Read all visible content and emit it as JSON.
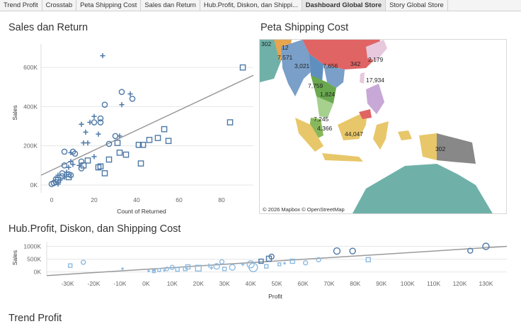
{
  "tabs": [
    {
      "label": "Trend Profit",
      "active": false
    },
    {
      "label": "Crosstab",
      "active": false
    },
    {
      "label": "Peta Shipping Cost",
      "active": false
    },
    {
      "label": "Sales dan Return",
      "active": false
    },
    {
      "label": "Hub.Profit, Diskon, dan Shippi...",
      "active": false
    },
    {
      "label": "Dashboard Global Store",
      "active": true
    },
    {
      "label": "Story Global Store",
      "active": false
    }
  ],
  "sections": {
    "sales_return_title": "Sales dan Return",
    "map_title": "Peta Shipping Cost",
    "hub_title": "Hub.Profit, Diskon, dan Shipping Cost",
    "trend_title": "Trend Profit"
  },
  "map": {
    "attribution": "© 2026 Mapbox  © OpenStreetMap",
    "labels": [
      "302",
      "12",
      "7,571",
      "3,021",
      "7,656",
      "342",
      "2,179",
      "17,934",
      "7,759",
      "1,824",
      "7,245",
      "4,366",
      "44,047",
      "302"
    ]
  },
  "colors": {
    "mark": "#4e79a7",
    "light_mark": "#8fbbe0",
    "trend": "#9a9a9a",
    "grid": "#e6e6e6"
  },
  "chart_data": [
    {
      "type": "scatter",
      "title": "Sales dan Return",
      "xlabel": "Count of Returned",
      "ylabel": "Sales",
      "xlim": [
        -5,
        95
      ],
      "ylim": [
        -40000,
        720000
      ],
      "x_ticks": [
        "0",
        "20",
        "40",
        "60",
        "80"
      ],
      "y_ticks": [
        "0K",
        "200K",
        "400K",
        "600K"
      ],
      "trend_line": [
        [
          -5,
          50000
        ],
        [
          95,
          560000
        ]
      ],
      "points": [
        {
          "x": 24,
          "y": 660000,
          "shape": "plus"
        },
        {
          "x": 90,
          "y": 600000,
          "shape": "square"
        },
        {
          "x": 33,
          "y": 475000,
          "shape": "circle"
        },
        {
          "x": 37,
          "y": 465000,
          "shape": "plus"
        },
        {
          "x": 38,
          "y": 440000,
          "shape": "circle"
        },
        {
          "x": 25,
          "y": 410000,
          "shape": "circle"
        },
        {
          "x": 33,
          "y": 410000,
          "shape": "plus"
        },
        {
          "x": 20,
          "y": 350000,
          "shape": "plus"
        },
        {
          "x": 23,
          "y": 340000,
          "shape": "circle"
        },
        {
          "x": 20,
          "y": 320000,
          "shape": "circle"
        },
        {
          "x": 23,
          "y": 320000,
          "shape": "circle"
        },
        {
          "x": 14,
          "y": 310000,
          "shape": "plus"
        },
        {
          "x": 18,
          "y": 320000,
          "shape": "plus"
        },
        {
          "x": 84,
          "y": 320000,
          "shape": "square"
        },
        {
          "x": 53,
          "y": 285000,
          "shape": "square"
        },
        {
          "x": 16,
          "y": 270000,
          "shape": "plus"
        },
        {
          "x": 22,
          "y": 260000,
          "shape": "plus"
        },
        {
          "x": 30,
          "y": 250000,
          "shape": "circle"
        },
        {
          "x": 32,
          "y": 250000,
          "shape": "plus"
        },
        {
          "x": 50,
          "y": 240000,
          "shape": "square"
        },
        {
          "x": 46,
          "y": 230000,
          "shape": "square"
        },
        {
          "x": 55,
          "y": 225000,
          "shape": "square"
        },
        {
          "x": 15,
          "y": 215000,
          "shape": "plus"
        },
        {
          "x": 17,
          "y": 215000,
          "shape": "plus"
        },
        {
          "x": 27,
          "y": 210000,
          "shape": "circle"
        },
        {
          "x": 31,
          "y": 215000,
          "shape": "square"
        },
        {
          "x": 41,
          "y": 205000,
          "shape": "square"
        },
        {
          "x": 43,
          "y": 205000,
          "shape": "square"
        },
        {
          "x": 6,
          "y": 170000,
          "shape": "circle"
        },
        {
          "x": 10,
          "y": 170000,
          "shape": "circle"
        },
        {
          "x": 11,
          "y": 160000,
          "shape": "circle"
        },
        {
          "x": 9,
          "y": 165000,
          "shape": "plus"
        },
        {
          "x": 32,
          "y": 165000,
          "shape": "square"
        },
        {
          "x": 35,
          "y": 155000,
          "shape": "square"
        },
        {
          "x": 20,
          "y": 145000,
          "shape": "plus"
        },
        {
          "x": 27,
          "y": 130000,
          "shape": "square"
        },
        {
          "x": 9,
          "y": 120000,
          "shape": "plus"
        },
        {
          "x": 14,
          "y": 120000,
          "shape": "circle"
        },
        {
          "x": 17,
          "y": 125000,
          "shape": "square"
        },
        {
          "x": 42,
          "y": 110000,
          "shape": "square"
        },
        {
          "x": 6,
          "y": 100000,
          "shape": "circle"
        },
        {
          "x": 10,
          "y": 105000,
          "shape": "plus"
        },
        {
          "x": 13,
          "y": 100000,
          "shape": "plus"
        },
        {
          "x": 15,
          "y": 100000,
          "shape": "square"
        },
        {
          "x": 8,
          "y": 90000,
          "shape": "plus"
        },
        {
          "x": 14,
          "y": 85000,
          "shape": "circle"
        },
        {
          "x": 22,
          "y": 90000,
          "shape": "square"
        },
        {
          "x": 23,
          "y": 95000,
          "shape": "square"
        },
        {
          "x": 5,
          "y": 60000,
          "shape": "circle"
        },
        {
          "x": 7,
          "y": 65000,
          "shape": "plus"
        },
        {
          "x": 8,
          "y": 55000,
          "shape": "circle"
        },
        {
          "x": 25,
          "y": 60000,
          "shape": "square"
        },
        {
          "x": 3,
          "y": 50000,
          "shape": "plus"
        },
        {
          "x": 5,
          "y": 45000,
          "shape": "circle"
        },
        {
          "x": 6,
          "y": 40000,
          "shape": "plus"
        },
        {
          "x": 8,
          "y": 40000,
          "shape": "square"
        },
        {
          "x": 9,
          "y": 50000,
          "shape": "circle"
        },
        {
          "x": 2,
          "y": 30000,
          "shape": "circle"
        },
        {
          "x": 3,
          "y": 25000,
          "shape": "square"
        },
        {
          "x": 4,
          "y": 25000,
          "shape": "plus"
        },
        {
          "x": 1,
          "y": 10000,
          "shape": "circle"
        },
        {
          "x": 2,
          "y": 15000,
          "shape": "circle"
        },
        {
          "x": 3,
          "y": 5000,
          "shape": "plus"
        },
        {
          "x": 0,
          "y": 5000,
          "shape": "circle"
        }
      ]
    },
    {
      "type": "scatter",
      "title": "Hub.Profit, Diskon, dan Shipping Cost",
      "xlabel": "Profit",
      "ylabel": "Sales",
      "xlim": [
        -38000,
        138000
      ],
      "ylim": [
        -120000,
        1180000
      ],
      "x_ticks": [
        "-30K",
        "-20K",
        "-10K",
        "0K",
        "10K",
        "20K",
        "30K",
        "40K",
        "50K",
        "60K",
        "70K",
        "80K",
        "90K",
        "100K",
        "110K",
        "120K",
        "130K"
      ],
      "y_ticks": [
        "0K",
        "500K",
        "1000K"
      ],
      "trend_line": [
        [
          -38000,
          -140000
        ],
        [
          138000,
          1000000
        ]
      ],
      "points": [
        {
          "x": 130000,
          "y": 1000000,
          "shape": "circle",
          "r": 4.5,
          "tone": "dark"
        },
        {
          "x": 73000,
          "y": 820000,
          "shape": "circle",
          "r": 4.5,
          "tone": "dark"
        },
        {
          "x": 79000,
          "y": 820000,
          "shape": "circle",
          "r": 4,
          "tone": "dark"
        },
        {
          "x": 124000,
          "y": 830000,
          "shape": "circle",
          "r": 3.5,
          "tone": "dark"
        },
        {
          "x": 47000,
          "y": 520000,
          "shape": "square",
          "r": 3.5,
          "tone": "dark"
        },
        {
          "x": 48000,
          "y": 600000,
          "shape": "circle",
          "r": 3.5,
          "tone": "dark"
        },
        {
          "x": 44000,
          "y": 420000,
          "shape": "square",
          "r": 3,
          "tone": "dark"
        },
        {
          "x": 56000,
          "y": 420000,
          "shape": "square",
          "r": 3,
          "tone": "light"
        },
        {
          "x": 66000,
          "y": 480000,
          "shape": "circle",
          "r": 3,
          "tone": "light"
        },
        {
          "x": 61000,
          "y": 360000,
          "shape": "circle",
          "r": 3,
          "tone": "light"
        },
        {
          "x": 85000,
          "y": 480000,
          "shape": "square",
          "r": 3,
          "tone": "light"
        },
        {
          "x": 29000,
          "y": 400000,
          "shape": "circle",
          "r": 3,
          "tone": "light"
        },
        {
          "x": 40000,
          "y": 300000,
          "shape": "circle",
          "r": 5,
          "tone": "light"
        },
        {
          "x": 41000,
          "y": 180000,
          "shape": "circle",
          "r": 6,
          "tone": "light"
        },
        {
          "x": 33000,
          "y": 180000,
          "shape": "circle",
          "r": 4,
          "tone": "light"
        },
        {
          "x": 27000,
          "y": 220000,
          "shape": "circle",
          "r": 4,
          "tone": "light"
        },
        {
          "x": 24000,
          "y": 250000,
          "shape": "plus",
          "r": 3,
          "tone": "light"
        },
        {
          "x": 20000,
          "y": 150000,
          "shape": "square",
          "r": 4,
          "tone": "light"
        },
        {
          "x": 16000,
          "y": 200000,
          "shape": "square",
          "r": 3,
          "tone": "light"
        },
        {
          "x": 15000,
          "y": 120000,
          "shape": "square",
          "r": 2.5,
          "tone": "light"
        },
        {
          "x": 10000,
          "y": 180000,
          "shape": "circle",
          "r": 3,
          "tone": "light"
        },
        {
          "x": 8000,
          "y": 120000,
          "shape": "circle",
          "r": 2.5,
          "tone": "light"
        },
        {
          "x": 5000,
          "y": 80000,
          "shape": "square",
          "r": 2,
          "tone": "light"
        },
        {
          "x": 3000,
          "y": 60000,
          "shape": "plus",
          "r": 2,
          "tone": "light"
        },
        {
          "x": 1000,
          "y": 40000,
          "shape": "plus",
          "r": 2,
          "tone": "light"
        },
        {
          "x": 12000,
          "y": 100000,
          "shape": "square",
          "r": 2.5,
          "tone": "light"
        },
        {
          "x": 25000,
          "y": 160000,
          "shape": "plus",
          "r": 2.5,
          "tone": "light"
        },
        {
          "x": 30000,
          "y": 120000,
          "shape": "square",
          "r": 2.5,
          "tone": "light"
        },
        {
          "x": 37000,
          "y": 300000,
          "shape": "plus",
          "r": 2.5,
          "tone": "light"
        },
        {
          "x": 46000,
          "y": 220000,
          "shape": "square",
          "r": 2.5,
          "tone": "light"
        },
        {
          "x": 51000,
          "y": 300000,
          "shape": "square",
          "r": 2,
          "tone": "light"
        },
        {
          "x": 53000,
          "y": 340000,
          "shape": "plus",
          "r": 2,
          "tone": "light"
        },
        {
          "x": -29000,
          "y": 250000,
          "shape": "square",
          "r": 2.5,
          "tone": "light"
        },
        {
          "x": -24000,
          "y": 380000,
          "shape": "circle",
          "r": 3,
          "tone": "light"
        },
        {
          "x": -9000,
          "y": 130000,
          "shape": "plus",
          "r": 2,
          "tone": "light"
        },
        {
          "x": 3000,
          "y": 30000,
          "shape": "square",
          "r": 2,
          "tone": "light"
        },
        {
          "x": 7000,
          "y": 60000,
          "shape": "plus",
          "r": 2,
          "tone": "light"
        }
      ]
    }
  ]
}
